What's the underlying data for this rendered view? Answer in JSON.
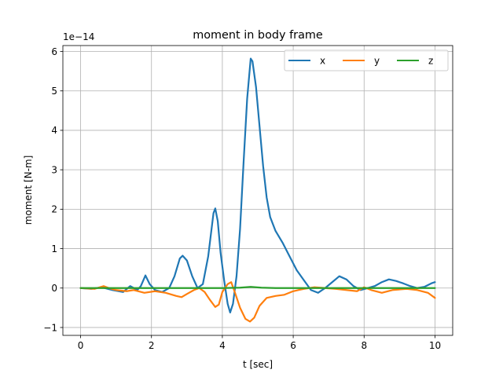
{
  "chart_data": {
    "type": "line",
    "title": "moment in body frame",
    "xlabel": "t [sec]",
    "ylabel": "moment [N-m]",
    "y_multiplier_label": "1e−14",
    "xlim": [
      -0.5,
      10.5
    ],
    "ylim": [
      -1.2,
      6.15
    ],
    "x_ticks": [
      0,
      2,
      4,
      6,
      8,
      10
    ],
    "x_tick_labels": [
      "0",
      "2",
      "4",
      "6",
      "8",
      "10"
    ],
    "y_ticks": [
      -1,
      0,
      1,
      2,
      3,
      4,
      5,
      6
    ],
    "y_tick_labels": [
      "−1",
      "0",
      "1",
      "2",
      "3",
      "4",
      "5",
      "6"
    ],
    "grid": true,
    "legend_position": "top-right",
    "legend_columns": 3,
    "series": [
      {
        "name": "x",
        "color": "#1f77b4",
        "points": [
          [
            0,
            0
          ],
          [
            0.3,
            -0.02
          ],
          [
            0.6,
            0.02
          ],
          [
            0.9,
            -0.05
          ],
          [
            1.2,
            -0.1
          ],
          [
            1.4,
            0.05
          ],
          [
            1.6,
            -0.05
          ],
          [
            1.7,
            0.05
          ],
          [
            1.83,
            0.32
          ],
          [
            1.95,
            0.1
          ],
          [
            2.1,
            -0.05
          ],
          [
            2.3,
            -0.1
          ],
          [
            2.5,
            0.0
          ],
          [
            2.65,
            0.3
          ],
          [
            2.8,
            0.75
          ],
          [
            2.88,
            0.82
          ],
          [
            3.0,
            0.7
          ],
          [
            3.15,
            0.3
          ],
          [
            3.3,
            0.0
          ],
          [
            3.45,
            0.1
          ],
          [
            3.6,
            0.8
          ],
          [
            3.75,
            1.9
          ],
          [
            3.8,
            2.02
          ],
          [
            3.87,
            1.7
          ],
          [
            3.95,
            0.9
          ],
          [
            4.05,
            0.2
          ],
          [
            4.15,
            -0.4
          ],
          [
            4.22,
            -0.62
          ],
          [
            4.3,
            -0.4
          ],
          [
            4.4,
            0.3
          ],
          [
            4.5,
            1.5
          ],
          [
            4.6,
            3.2
          ],
          [
            4.7,
            4.8
          ],
          [
            4.8,
            5.82
          ],
          [
            4.85,
            5.75
          ],
          [
            4.95,
            5.1
          ],
          [
            5.05,
            4.1
          ],
          [
            5.15,
            3.1
          ],
          [
            5.25,
            2.3
          ],
          [
            5.35,
            1.8
          ],
          [
            5.5,
            1.45
          ],
          [
            5.7,
            1.15
          ],
          [
            5.9,
            0.8
          ],
          [
            6.1,
            0.45
          ],
          [
            6.3,
            0.2
          ],
          [
            6.5,
            -0.05
          ],
          [
            6.7,
            -0.12
          ],
          [
            6.9,
            0.0
          ],
          [
            7.1,
            0.15
          ],
          [
            7.3,
            0.3
          ],
          [
            7.5,
            0.22
          ],
          [
            7.7,
            0.05
          ],
          [
            7.9,
            -0.05
          ],
          [
            8.1,
            0.0
          ],
          [
            8.3,
            0.05
          ],
          [
            8.5,
            0.15
          ],
          [
            8.7,
            0.22
          ],
          [
            8.9,
            0.18
          ],
          [
            9.1,
            0.12
          ],
          [
            9.3,
            0.05
          ],
          [
            9.5,
            0.0
          ],
          [
            9.7,
            0.03
          ],
          [
            9.9,
            0.12
          ],
          [
            10.0,
            0.15
          ]
        ]
      },
      {
        "name": "y",
        "color": "#ff7f0e",
        "points": [
          [
            0,
            0
          ],
          [
            0.4,
            -0.02
          ],
          [
            0.65,
            0.05
          ],
          [
            0.8,
            0.0
          ],
          [
            1.0,
            -0.05
          ],
          [
            1.3,
            -0.08
          ],
          [
            1.5,
            -0.05
          ],
          [
            1.8,
            -0.12
          ],
          [
            2.1,
            -0.08
          ],
          [
            2.4,
            -0.12
          ],
          [
            2.7,
            -0.2
          ],
          [
            2.85,
            -0.23
          ],
          [
            3.0,
            -0.15
          ],
          [
            3.2,
            -0.05
          ],
          [
            3.35,
            0.0
          ],
          [
            3.5,
            -0.1
          ],
          [
            3.65,
            -0.3
          ],
          [
            3.8,
            -0.48
          ],
          [
            3.9,
            -0.42
          ],
          [
            4.0,
            -0.1
          ],
          [
            4.15,
            0.1
          ],
          [
            4.25,
            0.15
          ],
          [
            4.35,
            -0.1
          ],
          [
            4.5,
            -0.5
          ],
          [
            4.65,
            -0.78
          ],
          [
            4.78,
            -0.85
          ],
          [
            4.9,
            -0.75
          ],
          [
            5.05,
            -0.45
          ],
          [
            5.25,
            -0.25
          ],
          [
            5.5,
            -0.2
          ],
          [
            5.75,
            -0.17
          ],
          [
            6.0,
            -0.08
          ],
          [
            6.3,
            -0.02
          ],
          [
            6.6,
            0.02
          ],
          [
            6.9,
            0.0
          ],
          [
            7.2,
            -0.02
          ],
          [
            7.5,
            -0.05
          ],
          [
            7.8,
            -0.08
          ],
          [
            8.0,
            0.02
          ],
          [
            8.2,
            -0.05
          ],
          [
            8.5,
            -0.12
          ],
          [
            8.8,
            -0.05
          ],
          [
            9.2,
            -0.02
          ],
          [
            9.5,
            -0.05
          ],
          [
            9.8,
            -0.12
          ],
          [
            10.0,
            -0.25
          ]
        ]
      },
      {
        "name": "z",
        "color": "#2ca02c",
        "points": [
          [
            0,
            0
          ],
          [
            1,
            0
          ],
          [
            2,
            0
          ],
          [
            3,
            0
          ],
          [
            4,
            0
          ],
          [
            4.5,
            0.01
          ],
          [
            4.8,
            0.03
          ],
          [
            5.1,
            0.01
          ],
          [
            5.5,
            0
          ],
          [
            6,
            0
          ],
          [
            7,
            0
          ],
          [
            8,
            0
          ],
          [
            9,
            0
          ],
          [
            10,
            0
          ]
        ]
      }
    ]
  }
}
